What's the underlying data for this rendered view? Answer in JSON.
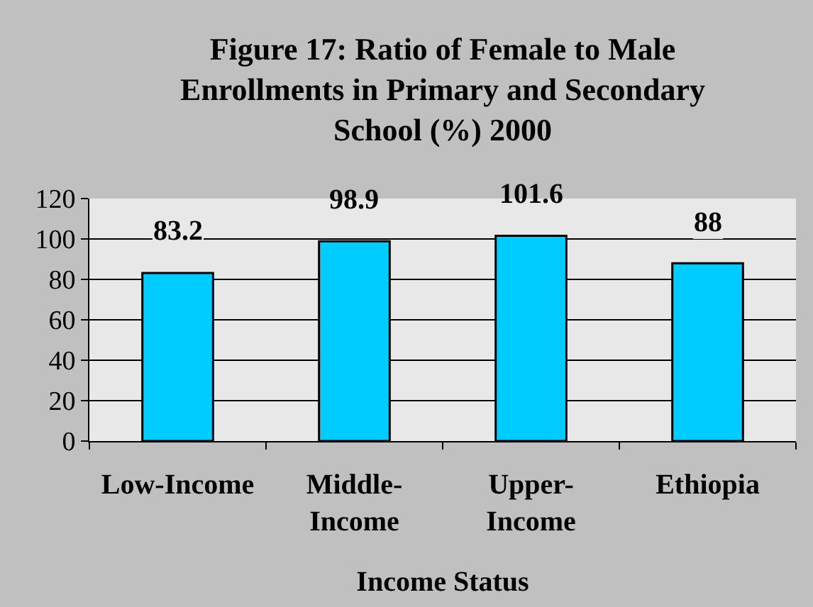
{
  "chart_data": {
    "type": "bar",
    "title": "Figure 17: Ratio of Female to Male Enrollments in Primary and Secondary School (%) 2000",
    "xlabel": "Income Status",
    "categories": [
      "Low-Income",
      "Middle-Income",
      "Upper-Income",
      "Ethiopia"
    ],
    "values": [
      83.2,
      98.9,
      101.6,
      88
    ],
    "color": "#00ccff",
    "ylim": [
      0,
      120
    ],
    "yticks": [
      0,
      20,
      40,
      60,
      80,
      100,
      120
    ],
    "grid": "y",
    "data_labels": true
  }
}
